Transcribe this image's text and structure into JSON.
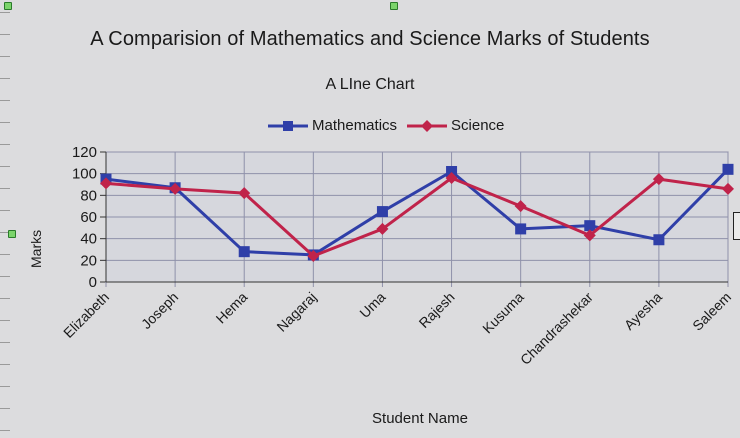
{
  "chart_data": {
    "type": "line",
    "title": "A Comparision of Mathematics and Science Marks of Students",
    "subtitle": "A LIne Chart",
    "xlabel": "Student Name",
    "ylabel": "Marks",
    "categories": [
      "Elizabeth",
      "Joseph",
      "Hema",
      "Nagaraj",
      "Uma",
      "Rajesh",
      "Kusuma",
      "Chandrashekar",
      "Ayesha",
      "Saleem"
    ],
    "ylim": [
      0,
      120
    ],
    "yticks": [
      0,
      20,
      40,
      60,
      80,
      100,
      120
    ],
    "grid": true,
    "legend_position": "top",
    "series": [
      {
        "name": "Mathematics",
        "color": "#2f3fa8",
        "marker": "square",
        "values": [
          95,
          87,
          28,
          25,
          65,
          102,
          49,
          52,
          39,
          104
        ]
      },
      {
        "name": "Science",
        "color": "#c0234a",
        "marker": "diamond",
        "values": [
          91,
          86,
          82,
          24,
          49,
          96,
          70,
          43,
          95,
          86
        ]
      }
    ]
  }
}
